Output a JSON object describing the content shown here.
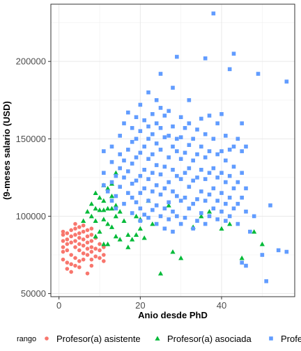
{
  "chart_data": {
    "type": "scatter",
    "xlabel": "Anio desde PhD",
    "ylabel": "(9-meses salario (USD)",
    "xlim": [
      -2,
      58
    ],
    "ylim": [
      48000,
      237000
    ],
    "x_ticks": [
      0,
      20,
      40
    ],
    "x_tick_labels": [
      "0",
      "20",
      "40"
    ],
    "y_ticks": [
      50000,
      100000,
      150000,
      200000
    ],
    "y_tick_labels": [
      "50000",
      "100000",
      "150000",
      "200000"
    ],
    "grid": true,
    "legend_position": "bottom",
    "legend_title": "rango",
    "series": [
      {
        "name": "Profesor(a) asistente",
        "color": "#F8766D",
        "shape": "circle",
        "points": [
          [
            1,
            90000
          ],
          [
            1,
            88000
          ],
          [
            1,
            84000
          ],
          [
            1,
            80000
          ],
          [
            1,
            77000
          ],
          [
            1,
            72000
          ],
          [
            2,
            89000
          ],
          [
            2,
            85000
          ],
          [
            2,
            82000
          ],
          [
            2,
            78000
          ],
          [
            2,
            70000
          ],
          [
            2,
            66000
          ],
          [
            3,
            91000
          ],
          [
            3,
            87000
          ],
          [
            3,
            83000
          ],
          [
            3,
            75000
          ],
          [
            3,
            69000
          ],
          [
            3,
            64000
          ],
          [
            4,
            95000
          ],
          [
            4,
            92000
          ],
          [
            4,
            88000
          ],
          [
            4,
            84000
          ],
          [
            4,
            80000
          ],
          [
            4,
            73000
          ],
          [
            4,
            68000
          ],
          [
            5,
            93000
          ],
          [
            5,
            89000
          ],
          [
            5,
            86000
          ],
          [
            5,
            82000
          ],
          [
            5,
            78000
          ],
          [
            5,
            71000
          ],
          [
            5,
            67000
          ],
          [
            6,
            94000
          ],
          [
            6,
            90000
          ],
          [
            6,
            85000
          ],
          [
            6,
            81000
          ],
          [
            6,
            76000
          ],
          [
            6,
            72000
          ],
          [
            7,
            91000
          ],
          [
            7,
            87000
          ],
          [
            7,
            83000
          ],
          [
            7,
            79000
          ],
          [
            7,
            75000
          ],
          [
            7,
            63000
          ],
          [
            8,
            92000
          ],
          [
            8,
            88000
          ],
          [
            8,
            84000
          ],
          [
            8,
            80000
          ],
          [
            8,
            77000
          ],
          [
            8,
            72000
          ],
          [
            8,
            68000
          ],
          [
            9,
            86000
          ],
          [
            9,
            79000
          ],
          [
            9,
            74000
          ],
          [
            10,
            82000
          ],
          [
            10,
            78000
          ],
          [
            10,
            73000
          ],
          [
            11,
            80000
          ],
          [
            11,
            75000
          ],
          [
            11,
            71000
          ]
        ]
      },
      {
        "name": "Profesor(a) asociada",
        "color": "#00BA38",
        "shape": "triangle",
        "points": [
          [
            6,
            97000
          ],
          [
            7,
            103000
          ],
          [
            8,
            108000
          ],
          [
            8,
            100000
          ],
          [
            9,
            115000
          ],
          [
            9,
            105000
          ],
          [
            9,
            97000
          ],
          [
            9,
            87000
          ],
          [
            10,
            112000
          ],
          [
            10,
            104000
          ],
          [
            10,
            90000
          ],
          [
            11,
            120000
          ],
          [
            11,
            110000
          ],
          [
            11,
            104000
          ],
          [
            11,
            98000
          ],
          [
            11,
            82000
          ],
          [
            12,
            118000
          ],
          [
            12,
            105000
          ],
          [
            12,
            95000
          ],
          [
            12,
            82000
          ],
          [
            13,
            121000
          ],
          [
            13,
            113000
          ],
          [
            13,
            105000
          ],
          [
            13,
            93000
          ],
          [
            14,
            128000
          ],
          [
            14,
            107000
          ],
          [
            14,
            100000
          ],
          [
            14,
            87000
          ],
          [
            15,
            103000
          ],
          [
            15,
            85000
          ],
          [
            16,
            97000
          ],
          [
            17,
            88000
          ],
          [
            17,
            80000
          ],
          [
            18,
            85000
          ],
          [
            19,
            100000
          ],
          [
            19,
            88000
          ],
          [
            20,
            98000
          ],
          [
            20,
            92000
          ],
          [
            21,
            86000
          ],
          [
            22,
            110000
          ],
          [
            23,
            95000
          ],
          [
            25,
            63000
          ],
          [
            27,
            107000
          ],
          [
            28,
            77000
          ],
          [
            30,
            73000
          ],
          [
            33,
            93000
          ],
          [
            35,
            100000
          ],
          [
            37,
            103000
          ],
          [
            40,
            92000
          ],
          [
            42,
            95000
          ],
          [
            45,
            73000
          ],
          [
            48,
            90000
          ],
          [
            50,
            82000
          ]
        ]
      },
      {
        "name": "Profesor(a) titular",
        "color": "#619CFF",
        "shape": "square",
        "points": [
          [
            11,
            120000
          ],
          [
            11,
            128000
          ],
          [
            11,
            142000
          ],
          [
            12,
            116000
          ],
          [
            13,
            110000
          ],
          [
            13,
            122000
          ],
          [
            13,
            135000
          ],
          [
            13,
            145000
          ],
          [
            14,
            105000
          ],
          [
            14,
            113000
          ],
          [
            14,
            126000
          ],
          [
            15,
            119000
          ],
          [
            15,
            131000
          ],
          [
            15,
            140000
          ],
          [
            15,
            152000
          ],
          [
            16,
            108000
          ],
          [
            16,
            125000
          ],
          [
            16,
            136000
          ],
          [
            16,
            160000
          ],
          [
            17,
            115000
          ],
          [
            17,
            129000
          ],
          [
            17,
            143000
          ],
          [
            17,
            167000
          ],
          [
            18,
            102000
          ],
          [
            18,
            112000
          ],
          [
            18,
            121000
          ],
          [
            18,
            134000
          ],
          [
            18,
            148000
          ],
          [
            18,
            157000
          ],
          [
            19,
            109000
          ],
          [
            19,
            123000
          ],
          [
            19,
            138000
          ],
          [
            19,
            150000
          ],
          [
            19,
            164000
          ],
          [
            20,
            97000
          ],
          [
            20,
            105000
          ],
          [
            20,
            115000
          ],
          [
            20,
            126000
          ],
          [
            20,
            141000
          ],
          [
            20,
            155000
          ],
          [
            20,
            172000
          ],
          [
            21,
            101000
          ],
          [
            21,
            118000
          ],
          [
            21,
            130000
          ],
          [
            21,
            145000
          ],
          [
            21,
            162000
          ],
          [
            22,
            99000
          ],
          [
            22,
            110000
          ],
          [
            22,
            124000
          ],
          [
            22,
            137000
          ],
          [
            22,
            150000
          ],
          [
            22,
            158000
          ],
          [
            22,
            180000
          ],
          [
            23,
            104000
          ],
          [
            23,
            116000
          ],
          [
            23,
            128000
          ],
          [
            23,
            140000
          ],
          [
            23,
            153000
          ],
          [
            23,
            166000
          ],
          [
            24,
            95000
          ],
          [
            24,
            107000
          ],
          [
            24,
            120000
          ],
          [
            24,
            133000
          ],
          [
            24,
            147000
          ],
          [
            24,
            160000
          ],
          [
            24,
            175000
          ],
          [
            25,
            100000
          ],
          [
            25,
            114000
          ],
          [
            25,
            127000
          ],
          [
            25,
            143000
          ],
          [
            25,
            157000
          ],
          [
            25,
            170000
          ],
          [
            25,
            192000
          ],
          [
            26,
            92000
          ],
          [
            26,
            105000
          ],
          [
            26,
            118000
          ],
          [
            26,
            132000
          ],
          [
            26,
            151000
          ],
          [
            26,
            165000
          ],
          [
            27,
            98000
          ],
          [
            27,
            109000
          ],
          [
            27,
            122000
          ],
          [
            27,
            138000
          ],
          [
            27,
            152000
          ],
          [
            27,
            168000
          ],
          [
            28,
            90000
          ],
          [
            28,
            103000
          ],
          [
            28,
            116000
          ],
          [
            28,
            130000
          ],
          [
            28,
            145000
          ],
          [
            28,
            158000
          ],
          [
            28,
            183000
          ],
          [
            29,
            100000
          ],
          [
            29,
            113000
          ],
          [
            29,
            126000
          ],
          [
            29,
            142000
          ],
          [
            29,
            150000
          ],
          [
            29,
            203000
          ],
          [
            30,
            95000
          ],
          [
            30,
            110000
          ],
          [
            30,
            124000
          ],
          [
            30,
            137000
          ],
          [
            30,
            151000
          ],
          [
            30,
            164000
          ],
          [
            31,
            99000
          ],
          [
            31,
            112000
          ],
          [
            31,
            128000
          ],
          [
            31,
            141000
          ],
          [
            31,
            157000
          ],
          [
            32,
            105000
          ],
          [
            32,
            119000
          ],
          [
            32,
            131000
          ],
          [
            32,
            146000
          ],
          [
            32,
            160000
          ],
          [
            32,
            175000
          ],
          [
            33,
            92000
          ],
          [
            33,
            108000
          ],
          [
            33,
            123000
          ],
          [
            33,
            136000
          ],
          [
            33,
            150000
          ],
          [
            34,
            97000
          ],
          [
            34,
            111000
          ],
          [
            34,
            125000
          ],
          [
            34,
            140000
          ],
          [
            34,
            156000
          ],
          [
            35,
            102000
          ],
          [
            35,
            116000
          ],
          [
            35,
            130000
          ],
          [
            35,
            145000
          ],
          [
            35,
            163000
          ],
          [
            36,
            95000
          ],
          [
            36,
            110000
          ],
          [
            36,
            124000
          ],
          [
            36,
            138000
          ],
          [
            36,
            153000
          ],
          [
            36,
            202000
          ],
          [
            37,
            100000
          ],
          [
            37,
            114000
          ],
          [
            37,
            128000
          ],
          [
            37,
            142000
          ],
          [
            37,
            165000
          ],
          [
            38,
            105000
          ],
          [
            38,
            118000
          ],
          [
            38,
            131000
          ],
          [
            38,
            150000
          ],
          [
            38,
            231000
          ],
          [
            39,
            98000
          ],
          [
            39,
            110000
          ],
          [
            39,
            125000
          ],
          [
            39,
            140000
          ],
          [
            39,
            160000
          ],
          [
            40,
            103000
          ],
          [
            40,
            115000
          ],
          [
            40,
            128000
          ],
          [
            40,
            142000
          ],
          [
            40,
            166000
          ],
          [
            41,
            97000
          ],
          [
            41,
            108000
          ],
          [
            41,
            122000
          ],
          [
            41,
            136000
          ],
          [
            41,
            152000
          ],
          [
            42,
            100000
          ],
          [
            42,
            112000
          ],
          [
            42,
            126000
          ],
          [
            42,
            143000
          ],
          [
            42,
            195000
          ],
          [
            43,
            105000
          ],
          [
            43,
            118000
          ],
          [
            43,
            132000
          ],
          [
            43,
            145000
          ],
          [
            43,
            205000
          ],
          [
            44,
            95000
          ],
          [
            44,
            108000
          ],
          [
            44,
            122000
          ],
          [
            44,
            150000
          ],
          [
            45,
            112000
          ],
          [
            45,
            128000
          ],
          [
            45,
            142000
          ],
          [
            45,
            160000
          ],
          [
            46,
            103000
          ],
          [
            46,
            118000
          ],
          [
            46,
            145000
          ],
          [
            46,
            68000
          ],
          [
            47,
            90000
          ],
          [
            48,
            100000
          ],
          [
            49,
            192000
          ],
          [
            50,
            75000
          ],
          [
            51,
            58000
          ],
          [
            52,
            107000
          ],
          [
            54,
            78000
          ],
          [
            56,
            187000
          ],
          [
            56,
            77000
          ],
          [
            45,
            70000
          ]
        ]
      }
    ]
  },
  "legend": {
    "title": "rango",
    "items": [
      {
        "label": "Profesor(a) asistente",
        "color": "#F8766D",
        "shape": "circle"
      },
      {
        "label": "Profesor(a) asociada",
        "color": "#00BA38",
        "shape": "triangle"
      },
      {
        "label": "Profesor(a) titular",
        "color": "#619CFF",
        "shape": "square"
      }
    ]
  }
}
